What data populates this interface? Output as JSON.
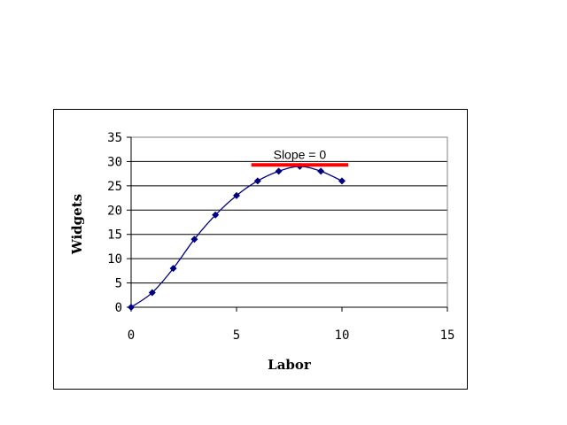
{
  "chart_data": {
    "type": "scatter",
    "xlabel": "Labor",
    "ylabel": "Widgets",
    "xlim": [
      0,
      15
    ],
    "ylim": [
      0,
      35
    ],
    "x_ticks": [
      0,
      5,
      10,
      15
    ],
    "y_ticks": [
      0,
      5,
      10,
      15,
      20,
      25,
      30,
      35
    ],
    "grid": "horizontal",
    "series": [
      {
        "x": [
          0,
          1,
          2,
          3,
          4,
          5,
          6,
          7,
          8,
          9,
          10
        ],
        "y": [
          0,
          3,
          8,
          14,
          19,
          23,
          26,
          28,
          29,
          28,
          26
        ],
        "color": "#000080",
        "marker": "diamond",
        "line": "smooth"
      }
    ],
    "annotation": {
      "text": "Slope = 0",
      "line_x": [
        5.7,
        10.3
      ],
      "line_y": 29.3,
      "color": "#ff0000"
    }
  }
}
